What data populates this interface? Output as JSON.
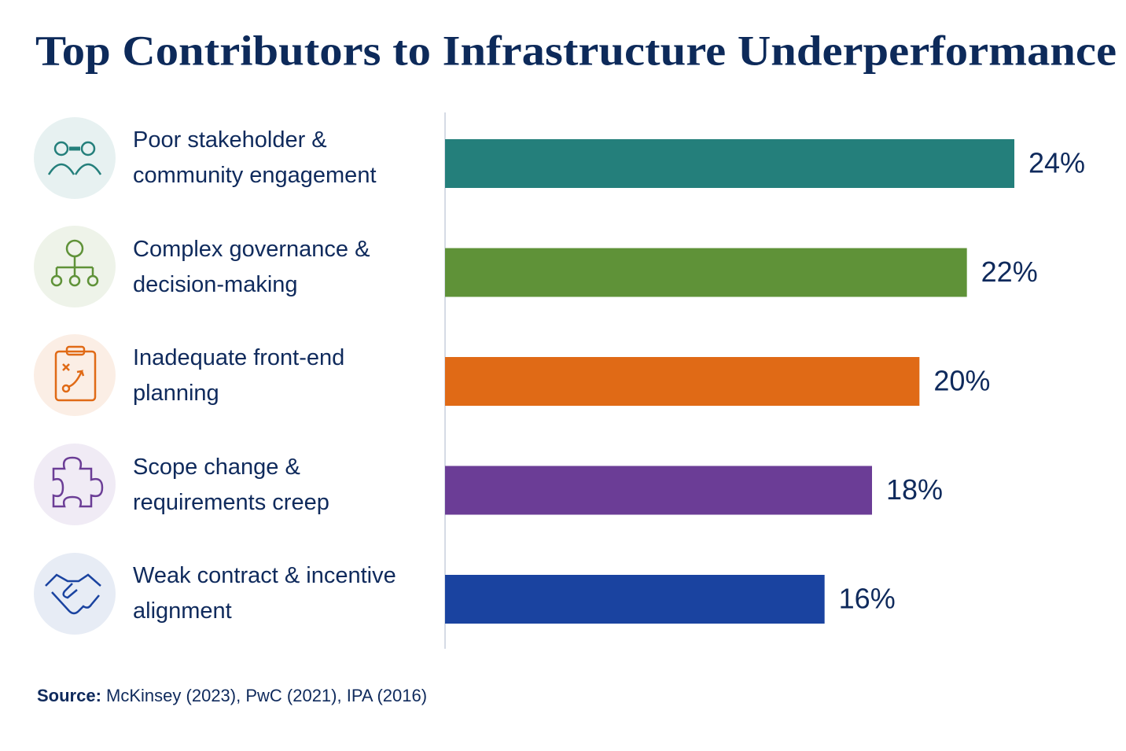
{
  "chart_data": {
    "type": "bar",
    "orientation": "horizontal",
    "title": "Top Contributors to Infrastructure Underperformance",
    "categories": [
      "Poor stakeholder & community engagement",
      "Complex governance & decision-making",
      "Inadequate front-end planning",
      "Scope change & requirements creep",
      "Weak contract & incentive alignment"
    ],
    "values": [
      24,
      22,
      20,
      18,
      16
    ],
    "value_labels": [
      "24%",
      "22%",
      "20%",
      "18%",
      "16%"
    ],
    "colors": [
      "#247f7b",
      "#5f9238",
      "#e06a16",
      "#6b3d96",
      "#1a43a0"
    ],
    "source_label": "Source:",
    "source": "McKinsey (2023), PwC (2021), IPA (2016)"
  }
}
